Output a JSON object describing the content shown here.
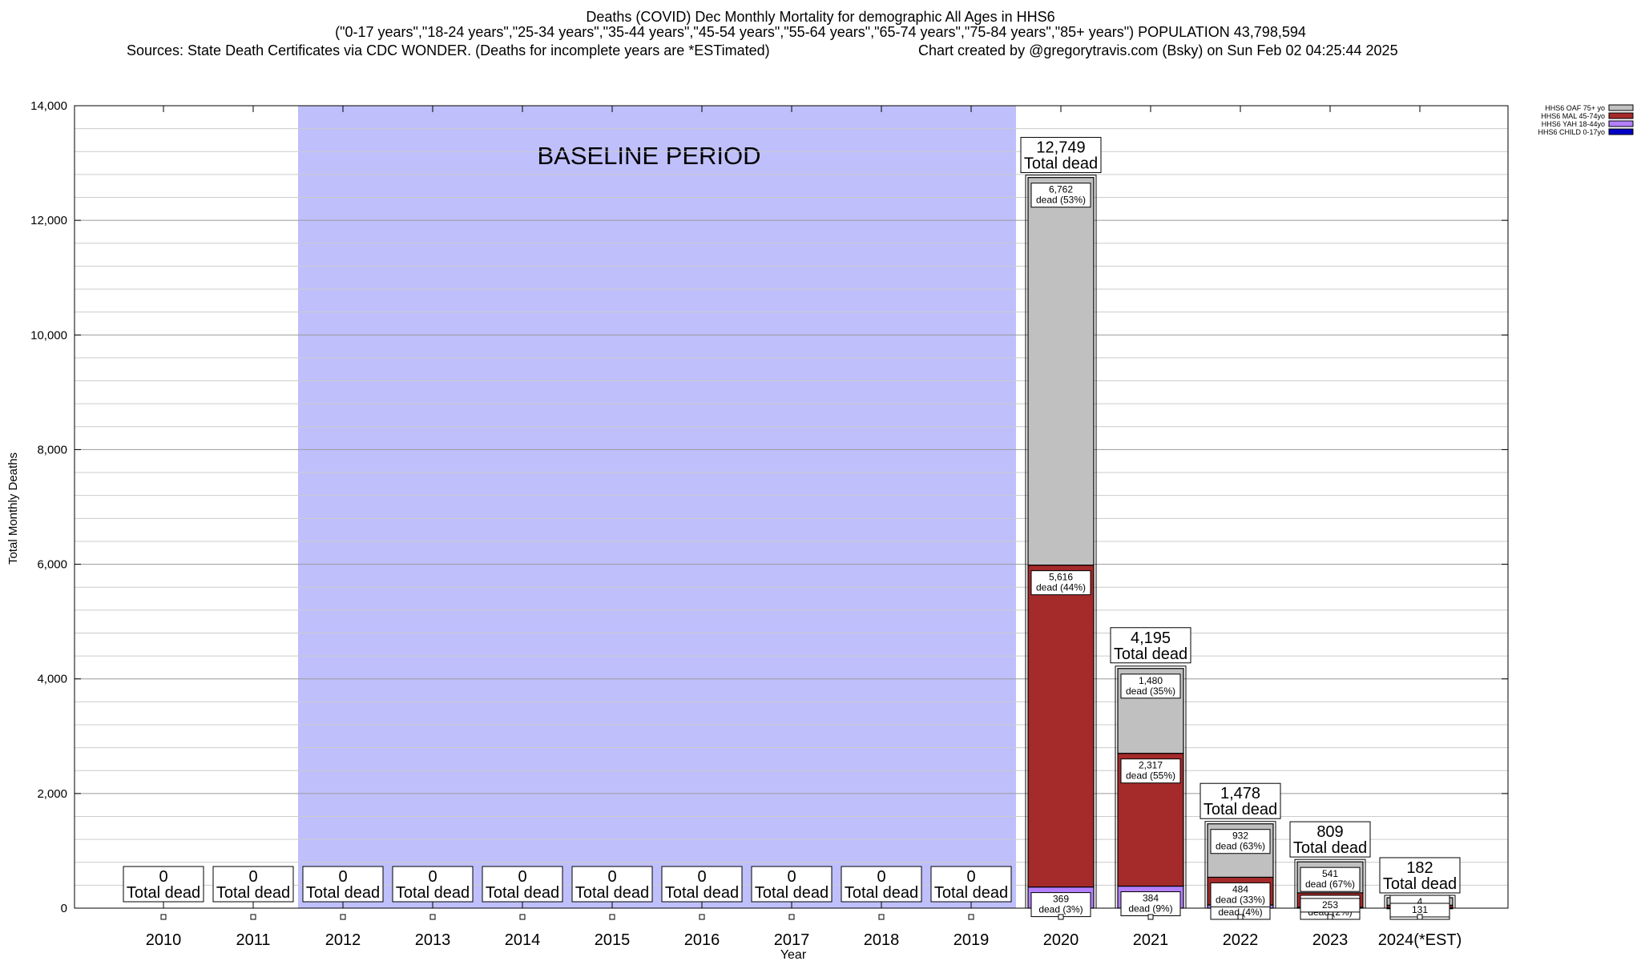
{
  "header": {
    "line1": "Deaths (COVID) Dec Monthly Mortality for demographic All Ages in HHS6",
    "line2": "(\"0-17 years\",\"18-24 years\",\"25-34 years\",\"35-44 years\",\"45-54 years\",\"55-64 years\",\"65-74 years\",\"75-84 years\",\"85+ years\") POPULATION 43,798,594",
    "sources": "Sources: State Death Certificates via CDC WONDER. (Deaths for incomplete years are *ESTimated)",
    "credit": "Chart created by @gregorytravis.com (Bsky) on Sun Feb 02 04:25:44 2025"
  },
  "chart_data": {
    "type": "bar",
    "stacked": true,
    "xlabel": "Year",
    "ylabel": "Total Monthly Deaths",
    "ylim": [
      0,
      14000
    ],
    "y_ticks": [
      "0",
      "2,000",
      "4,000",
      "6,000",
      "8,000",
      "10,000",
      "12,000",
      "14,000"
    ],
    "y_tick_values": [
      0,
      2000,
      4000,
      6000,
      8000,
      10000,
      12000,
      14000
    ],
    "grid": true,
    "legend_position": "top-right",
    "categories": [
      "2010",
      "2011",
      "2012",
      "2013",
      "2014",
      "2015",
      "2016",
      "2017",
      "2018",
      "2019",
      "2020",
      "2021",
      "2022",
      "2023",
      "2024(*EST)"
    ],
    "baseline": {
      "label": "BASELINE PERIOD",
      "from": "2012",
      "to": "2019",
      "color": "#bfbffc"
    },
    "totals": [
      0,
      0,
      0,
      0,
      0,
      0,
      0,
      0,
      0,
      0,
      12749,
      4195,
      1478,
      809,
      182
    ],
    "total_labels": [
      "0",
      "0",
      "0",
      "0",
      "0",
      "0",
      "0",
      "0",
      "0",
      "0",
      "12,749",
      "4,195",
      "1,478",
      "809",
      "182"
    ],
    "total_suffix": "Total dead",
    "series": [
      {
        "name": "HHS6 CHILD 0-17yo",
        "color": "#0000c8",
        "values": [
          0,
          0,
          0,
          0,
          0,
          0,
          0,
          0,
          0,
          0,
          0,
          0,
          0,
          0,
          0
        ],
        "labels": [
          "",
          "",
          "",
          "",
          "",
          "",
          "",
          "",
          "",
          "",
          "",
          "",
          "",
          "",
          ""
        ]
      },
      {
        "name": "HHS6 YAH 18-44yo",
        "color": "#b480ff",
        "values": [
          0,
          0,
          0,
          0,
          0,
          0,
          0,
          0,
          0,
          0,
          369,
          384,
          55,
          14,
          4
        ],
        "labels": [
          "",
          "",
          "",
          "",
          "",
          "",
          "",
          "",
          "",
          "",
          "369|dead (3%)",
          "384|dead (9%)",
          "55|dead (4%)",
          "14|dead (2%)",
          "4|dead (2%)"
        ]
      },
      {
        "name": "HHS6 MAL 45-74yo",
        "color": "#a52a2a",
        "values": [
          0,
          0,
          0,
          0,
          0,
          0,
          0,
          0,
          0,
          0,
          5616,
          2317,
          484,
          253,
          47
        ],
        "labels": [
          "",
          "",
          "",
          "",
          "",
          "",
          "",
          "",
          "",
          "",
          "5,616|dead (44%)",
          "2,317|dead (55%)",
          "484|dead (33%)",
          "253|",
          ""
        ]
      },
      {
        "name": "HHS6 OAF 75+ yo",
        "color": "#c0c0c0",
        "values": [
          0,
          0,
          0,
          0,
          0,
          0,
          0,
          0,
          0,
          0,
          6762,
          1480,
          932,
          541,
          131
        ],
        "labels": [
          "",
          "",
          "",
          "",
          "",
          "",
          "",
          "",
          "",
          "",
          "6,762|dead (53%)",
          "1,480|dead (35%)",
          "932|dead (63%)",
          "541|dead (67%)",
          "131|"
        ]
      }
    ]
  }
}
